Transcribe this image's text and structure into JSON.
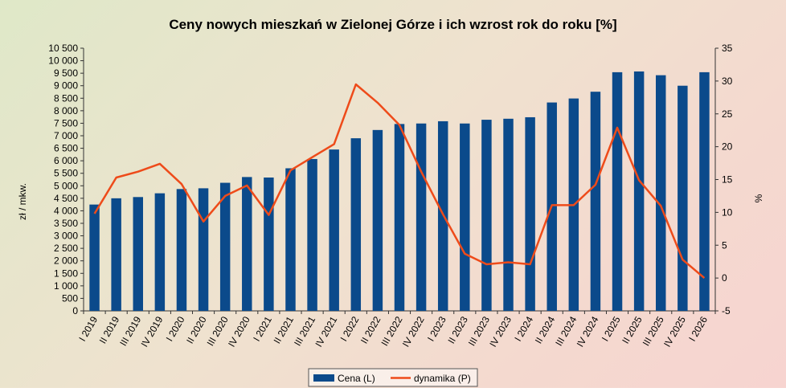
{
  "chart_data": {
    "type": "bar",
    "title": "Ceny nowych mieszkań w Zielonej Górze i ich wzrost rok do roku [%]",
    "ylabel_left": "zł / mkw.",
    "ylabel_right": "%",
    "ylim_left": [
      0,
      10500
    ],
    "ylim_right": [
      -5,
      35
    ],
    "yticks_left": [
      0,
      500,
      1000,
      1500,
      2000,
      2500,
      3000,
      3500,
      4000,
      4500,
      5000,
      5500,
      6000,
      6500,
      7000,
      7500,
      8000,
      8500,
      9000,
      9500,
      10000,
      10500
    ],
    "yticks_left_labels": [
      "0",
      "500",
      "1 000",
      "1 500",
      "2 000",
      "2 500",
      "3 000",
      "3 500",
      "4 000",
      "4 500",
      "5 000",
      "5 500",
      "6 000",
      "6 500",
      "7 000",
      "7 500",
      "8 000",
      "8 500",
      "9 000",
      "9 500",
      "10 000",
      "10 500"
    ],
    "yticks_right": [
      -5,
      0,
      5,
      10,
      15,
      20,
      25,
      30,
      35
    ],
    "yticks_right_labels": [
      "-5",
      "0",
      "5",
      "10",
      "15",
      "20",
      "25",
      "30",
      "35"
    ],
    "grid": false,
    "legend_position": "bottom-center",
    "categories": [
      "I 2019",
      "II 2019",
      "III 2019",
      "IV 2019",
      "I 2020",
      "II 2020",
      "III 2020",
      "IV 2020",
      "I 2021",
      "II 2021",
      "III 2021",
      "IV 2021",
      "I 2022",
      "II 2022",
      "III 2022",
      "IV 2022",
      "I 2023",
      "II 2023",
      "III 2023",
      "IV 2023",
      "I 2024",
      "II 2024",
      "III 2024",
      "IV 2024",
      "I 2025",
      "II 2025",
      "III 2025",
      "IV 2025",
      "I 2026"
    ],
    "series": [
      {
        "name": "Cena (L)",
        "type": "bar",
        "axis": "left",
        "color": "#0b4a8b",
        "values": [
          4250,
          4500,
          4550,
          4700,
          4870,
          4900,
          5120,
          5350,
          5330,
          5700,
          6070,
          6450,
          6900,
          7230,
          7470,
          7490,
          7580,
          7490,
          7640,
          7680,
          7740,
          8330,
          8490,
          8760,
          9540,
          9570,
          9420,
          9000,
          9540
        ]
      },
      {
        "name": "dynamika (P)",
        "type": "line",
        "axis": "right",
        "color": "#ee4b1a",
        "values": [
          9.8,
          15.3,
          16.2,
          17.4,
          14.3,
          8.6,
          12.5,
          14.1,
          9.6,
          16.4,
          18.4,
          20.4,
          29.5,
          26.7,
          23.3,
          16.2,
          9.7,
          3.7,
          2.1,
          2.4,
          2.1,
          11.1,
          11.1,
          14.2,
          22.9,
          14.9,
          11.0,
          2.8,
          0.0
        ]
      }
    ]
  }
}
